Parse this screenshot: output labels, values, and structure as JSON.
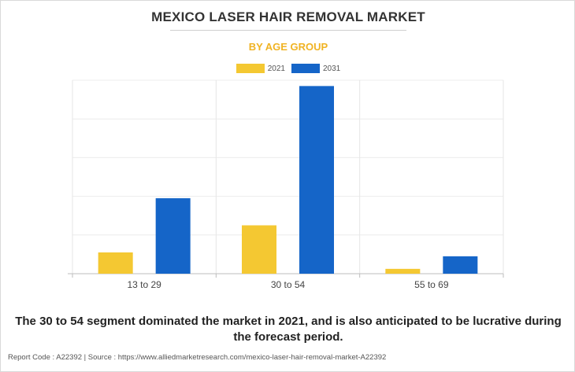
{
  "header": {
    "title": "MEXICO LASER HAIR REMOVAL MARKET",
    "subtitle": "BY AGE GROUP"
  },
  "legend": {
    "items": [
      {
        "label": "2021",
        "color": "#f4c832"
      },
      {
        "label": "2031",
        "color": "#1565c8"
      }
    ]
  },
  "chart_data": {
    "type": "bar",
    "categories": [
      "13 to 29",
      "30 to 54",
      "55 to 69"
    ],
    "series": [
      {
        "name": "2021",
        "color": "#f4c832",
        "values": [
          0.11,
          0.25,
          0.025
        ]
      },
      {
        "name": "2031",
        "color": "#1565c8",
        "values": [
          0.39,
          0.97,
          0.09
        ]
      }
    ],
    "ylim": [
      0,
      1.0
    ],
    "ytick_labels_shown": false,
    "grid": true,
    "legend_placement": "top-center"
  },
  "caption": "The 30 to 54 segment dominated the market in 2021, and is also anticipated to be lucrative during the forecast period.",
  "footer": "Report Code : A22392  |  Source : https://www.alliedmarketresearch.com/mexico-laser-hair-removal-market-A22392"
}
